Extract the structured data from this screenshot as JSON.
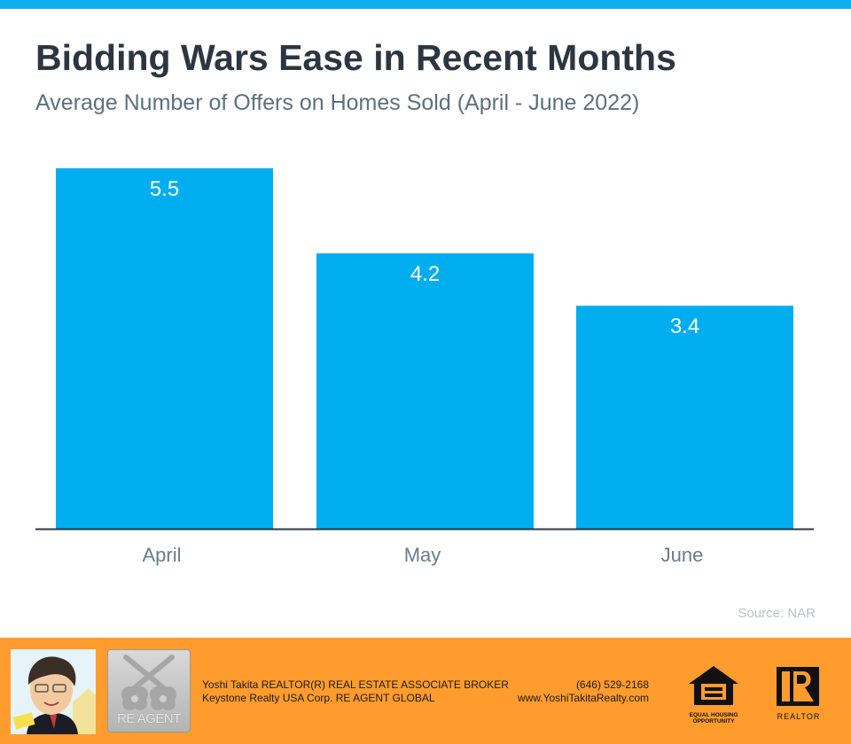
{
  "header": {
    "title": "Bidding Wars Ease in Recent Months",
    "subtitle": "Average Number of Offers on Homes Sold (April - June 2022)"
  },
  "chart_data": {
    "type": "bar",
    "title": "Bidding Wars Ease in Recent Months",
    "subtitle": "Average Number of Offers on Homes Sold (April - June 2022)",
    "xlabel": "",
    "ylabel": "",
    "categories": [
      "April",
      "May",
      "June"
    ],
    "values": [
      5.5,
      4.2,
      3.4
    ],
    "data_labels": [
      "5.5",
      "4.2",
      "3.4"
    ],
    "ylim": [
      0,
      5.5
    ],
    "grid": false,
    "bar_color": "#00aeef",
    "source": "Source: NAR"
  },
  "colors": {
    "accent": "#10aeef",
    "footer": "#ff9c2d",
    "title": "#2d3640",
    "subtitle": "#5e707b"
  },
  "footer": {
    "logo_text": "RE AGENT",
    "agent_line1": "Yoshi Takita REALTOR(R) REAL ESTATE ASSOCIATE BROKER",
    "agent_line2": "Keystone Realty USA Corp.  RE AGENT GLOBAL",
    "phone": "(646) 529-2168",
    "website": "www.YoshiTakitaRealty.com",
    "eho_line1": "EQUAL HOUSING",
    "eho_line2": "OPPORTUNITY",
    "realtor_label": "REALTOR"
  }
}
